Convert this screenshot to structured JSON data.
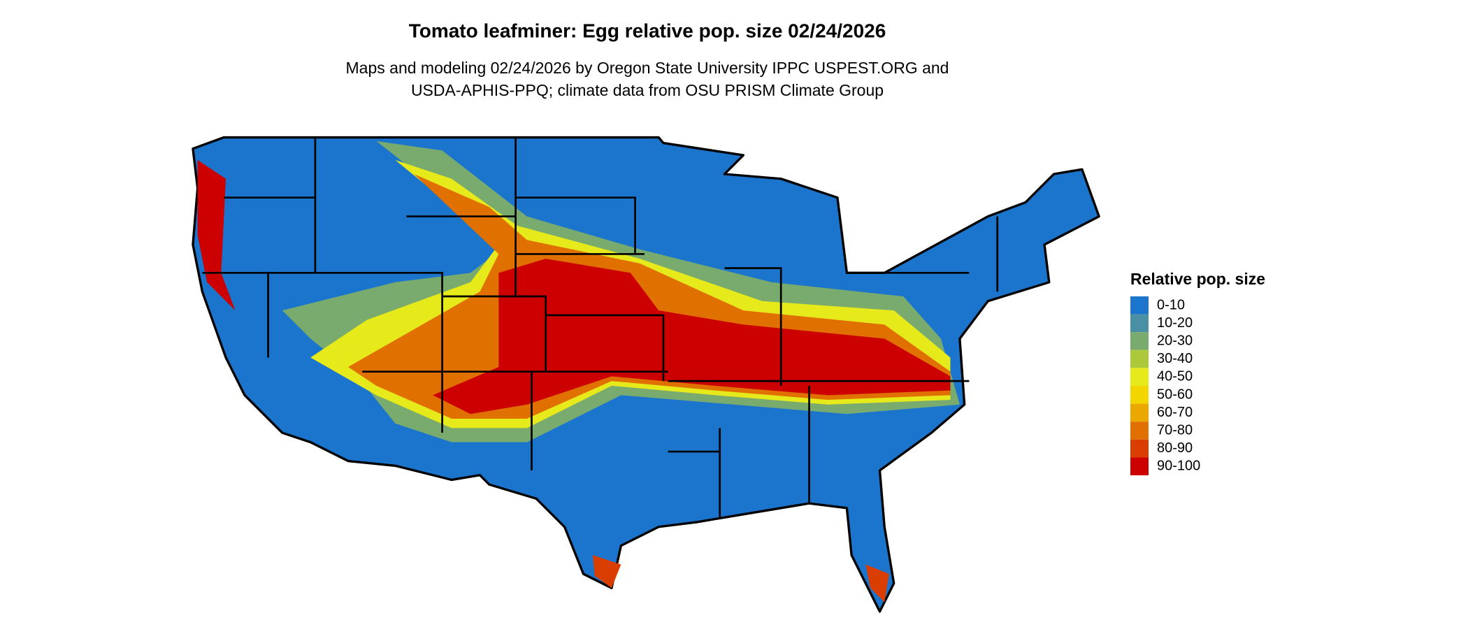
{
  "title": "Tomato leafminer: Egg relative pop. size 02/24/2026",
  "subtitle": [
    "Maps and modeling 02/24/2026 by Oregon State University IPPC USPEST.ORG and",
    "USDA-APHIS-PPQ; climate data from OSU PRISM Climate Group"
  ],
  "legend": {
    "title": "Relative pop. size",
    "items": [
      {
        "label": "0-10",
        "color": "#1c75cd"
      },
      {
        "label": "10-20",
        "color": "#4a90a4"
      },
      {
        "label": "20-30",
        "color": "#7aab6e"
      },
      {
        "label": "30-40",
        "color": "#acc93c"
      },
      {
        "label": "40-50",
        "color": "#e6ea1a"
      },
      {
        "label": "50-60",
        "color": "#f3d600"
      },
      {
        "label": "60-70",
        "color": "#eba800"
      },
      {
        "label": "70-80",
        "color": "#e07000"
      },
      {
        "label": "80-90",
        "color": "#d93d00"
      },
      {
        "label": "90-100",
        "color": "#cc0000"
      }
    ]
  }
}
